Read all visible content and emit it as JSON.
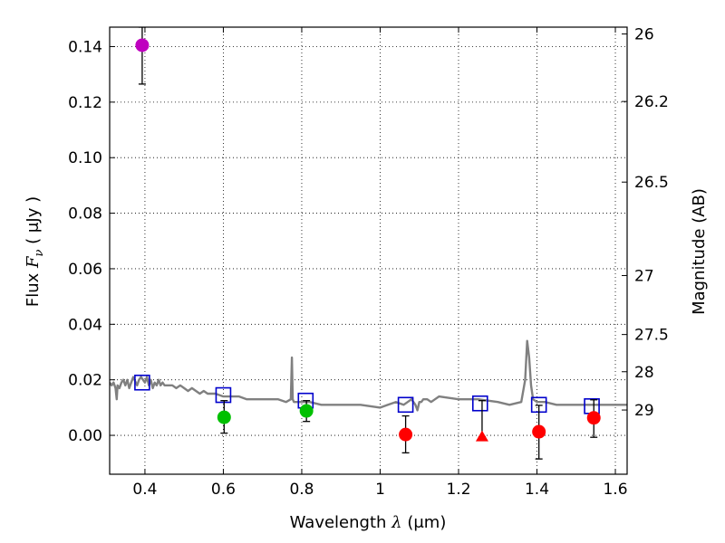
{
  "chart_data": {
    "type": "scatter",
    "xlabel_prefix": "Wavelength",
    "xlabel_symbol": "λ",
    "xlabel_unit": "(μm)",
    "ylabel_prefix": "Flux",
    "ylabel_symbol": "F",
    "ylabel_subscript": "ν",
    "ylabel_unit": "( μJy )",
    "right_ylabel": "Magnitude (AB)",
    "xlim": [
      0.31,
      1.63
    ],
    "ylim": [
      -0.014,
      0.147
    ],
    "grid": true,
    "x_ticks": [
      0.4,
      0.6,
      0.8,
      1.0,
      1.2,
      1.4,
      1.6
    ],
    "x_tick_labels": [
      "0.4",
      "0.6",
      "0.8",
      "1",
      "1.2",
      "1.4",
      "1.6"
    ],
    "y_ticks": [
      0.0,
      0.02,
      0.04,
      0.06,
      0.08,
      0.1,
      0.12,
      0.14
    ],
    "y_tick_labels": [
      "0.00",
      "0.02",
      "0.04",
      "0.06",
      "0.08",
      "0.10",
      "0.12",
      "0.14"
    ],
    "right_ticks": [
      {
        "mag": 26.0,
        "label": "26"
      },
      {
        "mag": 26.2,
        "label": "26.2"
      },
      {
        "mag": 26.5,
        "label": "26.5"
      },
      {
        "mag": 27.0,
        "label": "27"
      },
      {
        "mag": 27.5,
        "label": "27.5"
      },
      {
        "mag": 28.0,
        "label": "28"
      },
      {
        "mag": 29.0,
        "label": "29"
      }
    ],
    "model_spectrum": {
      "name": "model SED",
      "color": "#808080",
      "x": [
        0.31,
        0.315,
        0.32,
        0.325,
        0.328,
        0.33,
        0.335,
        0.34,
        0.345,
        0.35,
        0.355,
        0.36,
        0.365,
        0.37,
        0.38,
        0.385,
        0.39,
        0.395,
        0.4,
        0.405,
        0.41,
        0.415,
        0.42,
        0.425,
        0.43,
        0.435,
        0.44,
        0.445,
        0.45,
        0.46,
        0.47,
        0.48,
        0.49,
        0.5,
        0.51,
        0.52,
        0.53,
        0.54,
        0.55,
        0.56,
        0.58,
        0.6,
        0.62,
        0.64,
        0.66,
        0.7,
        0.74,
        0.76,
        0.772,
        0.775,
        0.777,
        0.78,
        0.8,
        0.82,
        0.85,
        0.9,
        0.95,
        1.0,
        1.02,
        1.04,
        1.06,
        1.08,
        1.09,
        1.095,
        1.1,
        1.105,
        1.11,
        1.12,
        1.13,
        1.14,
        1.15,
        1.2,
        1.25,
        1.3,
        1.33,
        1.36,
        1.37,
        1.375,
        1.38,
        1.385,
        1.39,
        1.4,
        1.42,
        1.45,
        1.5,
        1.55,
        1.6,
        1.63
      ],
      "y": [
        0.019,
        0.018,
        0.019,
        0.017,
        0.013,
        0.018,
        0.017,
        0.019,
        0.02,
        0.018,
        0.02,
        0.017,
        0.019,
        0.021,
        0.018,
        0.02,
        0.021,
        0.02,
        0.019,
        0.021,
        0.018,
        0.02,
        0.017,
        0.019,
        0.018,
        0.02,
        0.018,
        0.019,
        0.018,
        0.018,
        0.018,
        0.017,
        0.018,
        0.017,
        0.016,
        0.017,
        0.016,
        0.015,
        0.016,
        0.015,
        0.015,
        0.014,
        0.014,
        0.014,
        0.013,
        0.013,
        0.013,
        0.012,
        0.013,
        0.028,
        0.013,
        0.012,
        0.012,
        0.012,
        0.011,
        0.011,
        0.011,
        0.01,
        0.011,
        0.012,
        0.011,
        0.013,
        0.011,
        0.009,
        0.012,
        0.012,
        0.013,
        0.013,
        0.012,
        0.013,
        0.014,
        0.013,
        0.013,
        0.012,
        0.011,
        0.012,
        0.02,
        0.034,
        0.028,
        0.018,
        0.013,
        0.012,
        0.012,
        0.011,
        0.011,
        0.011,
        0.011,
        0.011
      ]
    },
    "model_photometry": {
      "name": "model photometry",
      "color": "#0000cc",
      "points": [
        {
          "x": 0.393,
          "y": 0.019
        },
        {
          "x": 0.6,
          "y": 0.0145
        },
        {
          "x": 0.81,
          "y": 0.0125
        },
        {
          "x": 1.065,
          "y": 0.011
        },
        {
          "x": 1.255,
          "y": 0.0115
        },
        {
          "x": 1.405,
          "y": 0.011
        },
        {
          "x": 1.54,
          "y": 0.0105
        }
      ]
    },
    "observed": {
      "name": "observed photometry",
      "points": [
        {
          "x": 0.393,
          "y": 0.1405,
          "err_lo": 0.1265,
          "err_hi": 0.147,
          "color": "#bf00bf",
          "marker": "circle"
        },
        {
          "x": 0.602,
          "y": 0.0065,
          "err_lo": 0.0008,
          "err_hi": 0.0125,
          "color": "#00c000",
          "marker": "circle"
        },
        {
          "x": 0.812,
          "y": 0.0088,
          "err_lo": 0.005,
          "err_hi": 0.0125,
          "color": "#00c000",
          "marker": "circle"
        },
        {
          "x": 1.065,
          "y": 0.0003,
          "err_lo": -0.0063,
          "err_hi": 0.007,
          "color": "#ff0000",
          "marker": "circle"
        },
        {
          "x": 1.26,
          "y": -0.0005,
          "err_lo": -0.0005,
          "err_hi": 0.0125,
          "color": "#ff0000",
          "marker": "triangle"
        },
        {
          "x": 1.405,
          "y": 0.0013,
          "err_lo": -0.0085,
          "err_hi": 0.0108,
          "color": "#ff0000",
          "marker": "circle"
        },
        {
          "x": 1.545,
          "y": 0.0063,
          "err_lo": -0.0007,
          "err_hi": 0.0128,
          "color": "#ff0000",
          "marker": "circle"
        }
      ]
    }
  }
}
